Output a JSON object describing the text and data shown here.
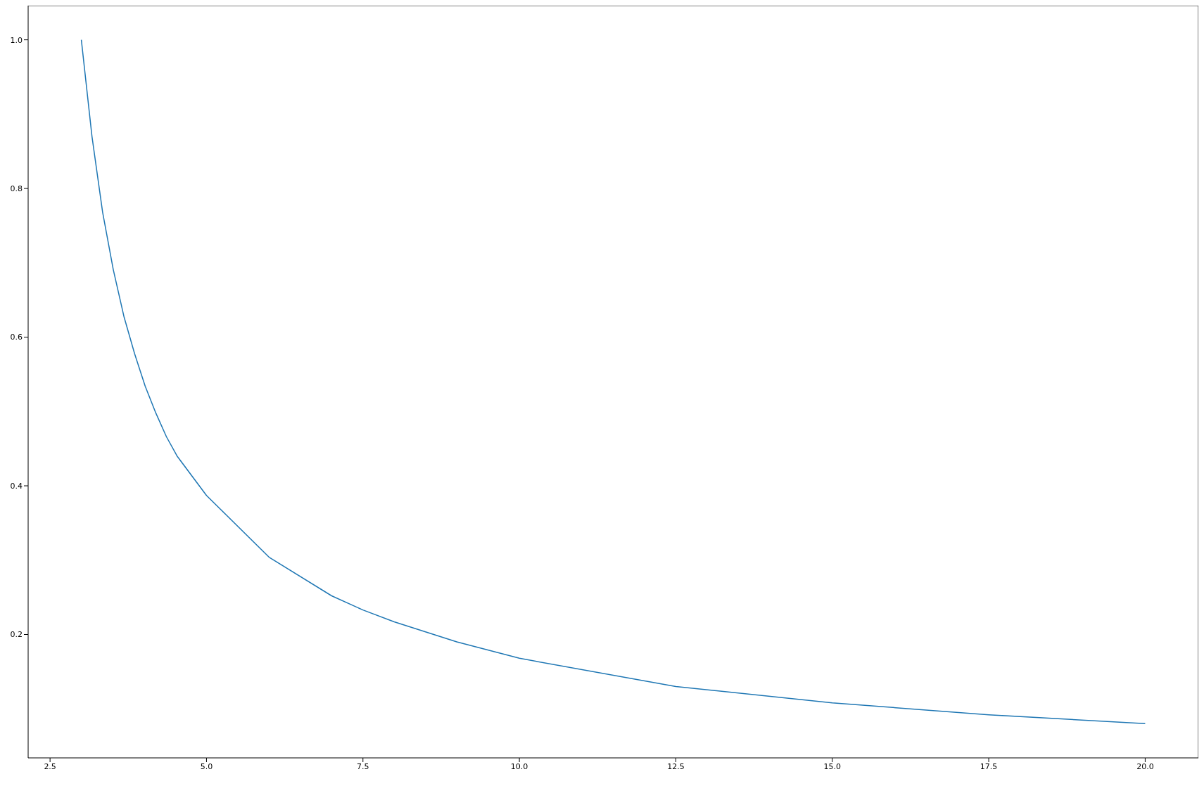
{
  "chart_data": {
    "type": "line",
    "x": [
      3.0,
      3.17,
      3.34,
      3.51,
      3.68,
      3.85,
      4.02,
      4.19,
      4.36,
      4.53,
      5.0,
      6.0,
      7.0,
      7.5,
      8.0,
      9.0,
      10.0,
      12.5,
      15.0,
      17.5,
      20.0
    ],
    "series": [
      {
        "color": "#1f77b4",
        "values": [
          1.0,
          0.87,
          0.768,
          0.691,
          0.628,
          0.578,
          0.534,
          0.498,
          0.466,
          0.44,
          0.387,
          0.304,
          0.252,
          0.233,
          0.217,
          0.19,
          0.168,
          0.13,
          0.108,
          0.092,
          0.08
        ]
      }
    ],
    "xlim": [
      2.15,
      20.85
    ],
    "ylim": [
      0.034,
      1.046
    ],
    "xticks": [
      {
        "value": 2.5,
        "label": "2.5"
      },
      {
        "value": 5,
        "label": "5.0"
      },
      {
        "value": 7.5,
        "label": "7.5"
      },
      {
        "value": 10,
        "label": "10.0"
      },
      {
        "value": 12.5,
        "label": "12.5"
      },
      {
        "value": 15,
        "label": "15.0"
      },
      {
        "value": 17.5,
        "label": "17.5"
      },
      {
        "value": 20,
        "label": "20.0"
      }
    ],
    "yticks": [
      {
        "value": 0.2,
        "label": "0.2"
      },
      {
        "value": 0.4,
        "label": "0.4"
      },
      {
        "value": 0.6,
        "label": "0.6"
      },
      {
        "value": 0.8,
        "label": "0.8"
      },
      {
        "value": 1.0,
        "label": "1.0"
      }
    ],
    "marker": "none",
    "line_style": "solid",
    "grid": false,
    "legend": false
  }
}
